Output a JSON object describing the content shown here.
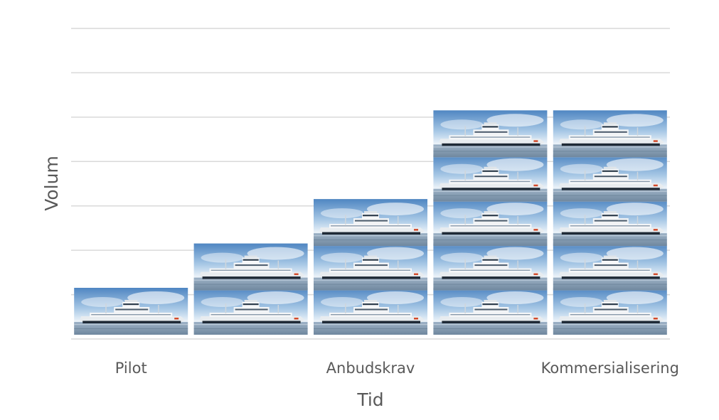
{
  "chart_data": {
    "type": "bar",
    "title": "",
    "xlabel": "Tid",
    "ylabel": "Volum",
    "categories": [
      "Pilot",
      "",
      "Anbudskrav",
      "",
      "Kommersialisering"
    ],
    "series": [
      {
        "values": [
          1,
          2,
          3,
          5,
          5
        ]
      }
    ],
    "ylim": [
      0,
      7
    ],
    "grid": true,
    "legend": "none",
    "mark_icon": "electric-ferry-picture"
  }
}
